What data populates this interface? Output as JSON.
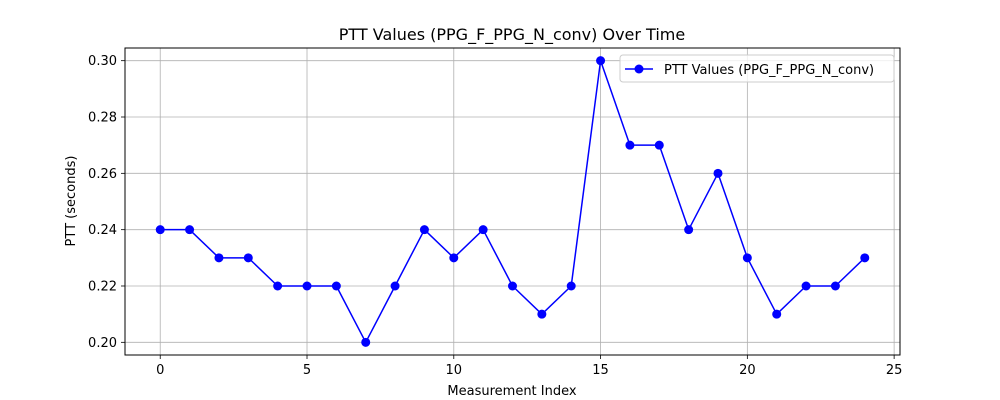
{
  "chart_data": {
    "type": "line",
    "title": "PTT Values (PPG_F_PPG_N_conv) Over Time",
    "xlabel": "Measurement Index",
    "ylabel": "PTT (seconds)",
    "x": [
      0,
      1,
      2,
      3,
      4,
      5,
      6,
      7,
      8,
      9,
      10,
      11,
      12,
      13,
      14,
      15,
      16,
      17,
      18,
      19,
      20,
      21,
      22,
      23,
      24
    ],
    "series": [
      {
        "name": "PTT Values (PPG_F_PPG_N_conv)",
        "color": "#0000ff",
        "marker": "circle",
        "values": [
          0.24,
          0.24,
          0.23,
          0.23,
          0.22,
          0.22,
          0.22,
          0.2,
          0.22,
          0.24,
          0.23,
          0.24,
          0.22,
          0.21,
          0.22,
          0.3,
          0.27,
          0.27,
          0.24,
          0.26,
          0.23,
          0.21,
          0.22,
          0.22,
          0.23
        ]
      }
    ],
    "xlim": [
      -1.2,
      25.2
    ],
    "ylim": [
      0.1955,
      0.3045
    ],
    "xticks": [
      0,
      5,
      10,
      15,
      20,
      25
    ],
    "xtick_labels": [
      "0",
      "5",
      "10",
      "15",
      "20",
      "25"
    ],
    "yticks": [
      0.2,
      0.22,
      0.24,
      0.26,
      0.28,
      0.3
    ],
    "ytick_labels": [
      "0.20",
      "0.22",
      "0.24",
      "0.26",
      "0.28",
      "0.30"
    ],
    "grid": true,
    "legend_position": "top-right"
  }
}
